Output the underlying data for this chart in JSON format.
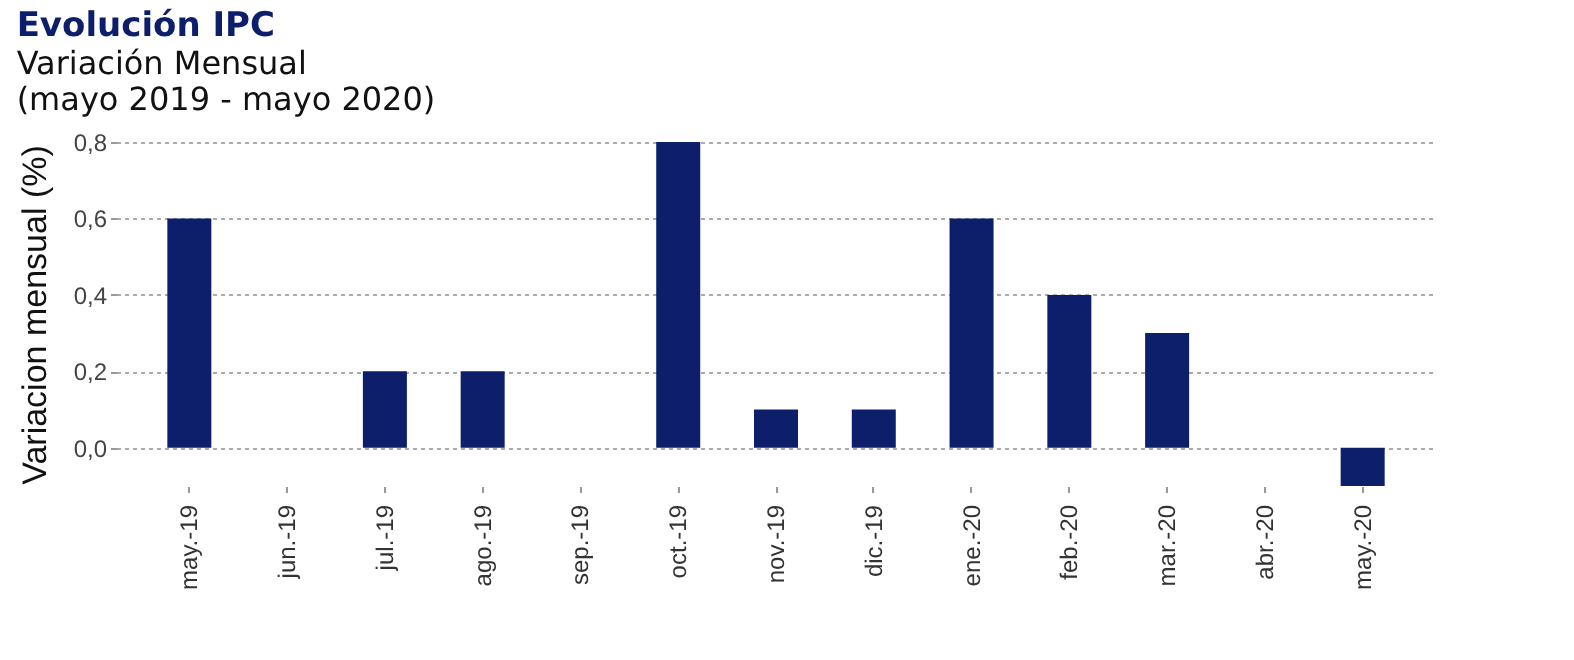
{
  "chart_data": {
    "type": "bar",
    "title": "Evolución IPC",
    "subtitle": "Variación Mensual\n(mayo 2019 - mayo 2020)",
    "ylabel": "Variacion mensual (%)",
    "categories": [
      "may.-19",
      "jun.-19",
      "jul.-19",
      "ago.-19",
      "sep.-19",
      "oct.-19",
      "nov.-19",
      "dic.-19",
      "ene.-20",
      "feb.-20",
      "mar.-20",
      "abr.-20",
      "may.-20"
    ],
    "values": [
      0.6,
      0,
      0.2,
      0.2,
      0,
      0.8,
      0.1,
      0.1,
      0.6,
      0.4,
      0.3,
      0,
      -0.1
    ],
    "color": "#0d1f6b",
    "ylim": [
      -0.1,
      0.8
    ],
    "yticks": [
      {
        "value": 0,
        "label": "0,0"
      },
      {
        "value": 0.2,
        "label": "0,2"
      },
      {
        "value": 0.4,
        "label": "0,4"
      },
      {
        "value": 0.6,
        "label": "0,6"
      },
      {
        "value": 0.8,
        "label": "0,8"
      }
    ],
    "grid": "y"
  }
}
